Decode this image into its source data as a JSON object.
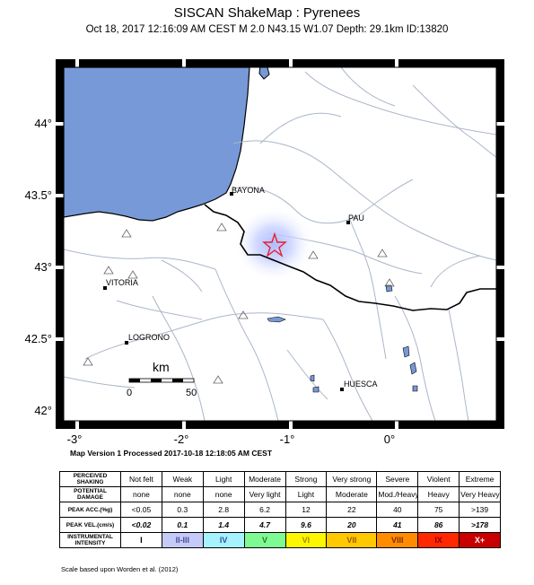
{
  "header": {
    "title": "SISCAN ShakeMap : Pyrenees",
    "subtitle": "Oct 18, 2017 12:16:09 AM CEST   M 2.0   N43.15 W1.07   Depth: 29.1km   ID:13820"
  },
  "map": {
    "lat_labels": [
      "44°",
      "43.5°",
      "43°",
      "42.5°",
      "42°"
    ],
    "lon_labels": [
      "-3°",
      "-2°",
      "-1°",
      "0°"
    ],
    "cities": [
      "BAYONA",
      "PAU",
      "VITORIA",
      "LOGRONO",
      "HUESCA"
    ],
    "scalebar": {
      "unit": "km",
      "start": "0",
      "end": "50"
    },
    "colors": {
      "sea": "#7799d8",
      "land": "#ffffff",
      "rivers": "#aab6c9",
      "border": "#000000",
      "epicenter": "#e8202a",
      "shaking": "#b8c4ff"
    },
    "epicenter_icon": "star-icon",
    "station_icon": "triangle-icon"
  },
  "processed_text": "Map Version 1 Processed 2017-10-18 12:18:05 AM CEST",
  "legend": {
    "rows": [
      {
        "label": "PERCEIVED SHAKING",
        "values": [
          "Not felt",
          "Weak",
          "Light",
          "Moderate",
          "Strong",
          "Very strong",
          "Severe",
          "Violent",
          "Extreme"
        ]
      },
      {
        "label": "POTENTIAL DAMAGE",
        "values": [
          "none",
          "none",
          "none",
          "Very light",
          "Light",
          "Moderate",
          "Mod./Heavy",
          "Heavy",
          "Very Heavy"
        ]
      },
      {
        "label": "PEAK ACC.(%g)",
        "values": [
          "<0.05",
          "0.3",
          "2.8",
          "6.2",
          "12",
          "22",
          "40",
          "75",
          ">139"
        ]
      },
      {
        "label": "PEAK VEL.(cm/s)",
        "values": [
          "<0.02",
          "0.1",
          "1.4",
          "4.7",
          "9.6",
          "20",
          "41",
          "86",
          ">178"
        ]
      },
      {
        "label": "INSTRUMENTAL INTENSITY",
        "values": [
          "I",
          "II-III",
          "IV",
          "V",
          "VI",
          "VII",
          "VIII",
          "IX",
          "X+"
        ]
      }
    ],
    "intensity_colors": [
      "#ffffff",
      "#c5cbf8",
      "#a6f2ff",
      "#7ffa93",
      "#fcf700",
      "#ffc800",
      "#ff8c00",
      "#ff2800",
      "#c80000"
    ],
    "intensity_text_colors": [
      "#000000",
      "#4a4a99",
      "#2d4fa3",
      "#2a7a2a",
      "#a48a00",
      "#9c5a00",
      "#7a3000",
      "#8a0000",
      "#ffffff"
    ]
  },
  "scale_note": "Scale based upon Worden et al. (2012)"
}
